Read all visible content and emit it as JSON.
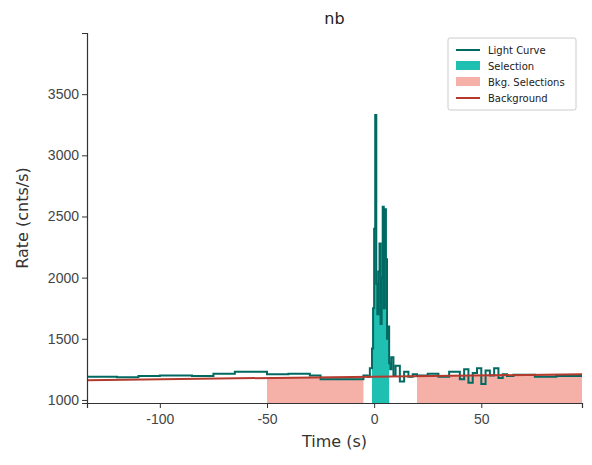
{
  "chart_data": {
    "type": "line",
    "title": "nb",
    "x_label": "Time (s)",
    "y_label": "Rate (cnts/s)",
    "xlim": [
      -134,
      97
    ],
    "ylim": [
      975,
      4000
    ],
    "xticks": [
      -100,
      -50,
      0,
      50
    ],
    "yticks": [
      1000,
      1500,
      2000,
      2500,
      3000,
      3500
    ],
    "legend": "upper right",
    "series": [
      {
        "name": "Light Curve",
        "color": "#006a62",
        "type": "line",
        "line_style": "step",
        "x": [
          -134,
          -120,
          -110,
          -100,
          -85,
          -75,
          -65,
          -50,
          -40,
          -30,
          -25,
          -5,
          -3,
          -2,
          -1,
          -0.5,
          0,
          0.5,
          1,
          1.5,
          2,
          2.5,
          3,
          3.5,
          4,
          4.5,
          5,
          5.5,
          6,
          6.5,
          7,
          7.5,
          8,
          9,
          10,
          12,
          14,
          16,
          18,
          20,
          25,
          30,
          35,
          40,
          42,
          44,
          46,
          48,
          50,
          52,
          54,
          56,
          58,
          60,
          62,
          65,
          75,
          85,
          97
        ],
        "values": [
          1190,
          1185,
          1195,
          1200,
          1195,
          1215,
          1230,
          1210,
          1215,
          1200,
          1170,
          1200,
          1190,
          1260,
          1420,
          1750,
          2400,
          3330,
          1950,
          1700,
          2050,
          2280,
          1620,
          2000,
          2580,
          1750,
          2560,
          2150,
          1500,
          1600,
          1300,
          1250,
          1350,
          1200,
          1280,
          1150,
          1230,
          1190,
          1210,
          1200,
          1215,
          1190,
          1230,
          1170,
          1250,
          1140,
          1220,
          1260,
          1130,
          1240,
          1200,
          1260,
          1180,
          1210,
          1195,
          1205,
          1190,
          1195,
          1195
        ]
      },
      {
        "name": "Selection",
        "color": "#1fbfb2",
        "type": "area",
        "line_style": "step",
        "x": [
          -1,
          -0.5,
          0,
          0.5,
          1,
          1.5,
          2,
          2.5,
          3,
          3.5,
          4,
          4.5,
          5,
          5.5,
          6,
          6.5,
          7
        ],
        "values": [
          1420,
          1750,
          2400,
          3330,
          1950,
          1700,
          2050,
          2280,
          1620,
          2000,
          2580,
          1750,
          2560,
          2150,
          1500,
          1600,
          1300
        ]
      },
      {
        "name": "Bkg. Selections",
        "color": "#f5b0a8",
        "type": "area",
        "x": [
          -50,
          -5,
          0,
          20,
          97
        ],
        "values": [
          1180,
          1189,
          null,
          1194,
          1210
        ]
      },
      {
        "name": "Background",
        "color": "#b5392c",
        "type": "line",
        "x": [
          -134,
          97
        ],
        "values": [
          1162,
          1210
        ]
      }
    ]
  }
}
